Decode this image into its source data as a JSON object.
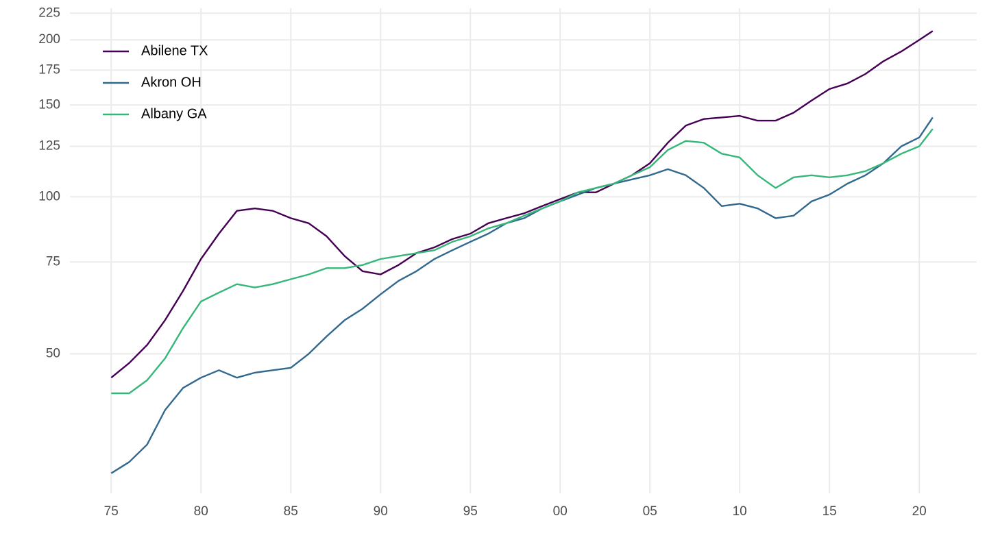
{
  "chart_data": {
    "type": "line",
    "x": [
      1975,
      1976,
      1977,
      1978,
      1979,
      1980,
      1981,
      1982,
      1983,
      1984,
      1985,
      1986,
      1987,
      1988,
      1989,
      1990,
      1991,
      1992,
      1993,
      1994,
      1995,
      1996,
      1997,
      1998,
      1999,
      2000,
      2001,
      2002,
      2003,
      2004,
      2005,
      2006,
      2007,
      2008,
      2009,
      2010,
      2011,
      2012,
      2013,
      2014,
      2015,
      2016,
      2017,
      2018,
      2019,
      2020,
      2020.75
    ],
    "series": [
      {
        "name": "Abilene TX",
        "color": "#440154",
        "values": [
          45,
          48,
          52,
          58,
          66,
          76,
          85,
          94,
          95,
          94,
          91,
          89,
          84,
          77,
          72,
          71,
          74,
          78,
          80,
          83,
          85,
          89,
          91,
          93,
          96,
          99,
          102,
          102,
          106,
          110,
          116,
          127,
          137,
          141,
          142,
          143,
          140,
          140,
          145,
          153,
          161,
          165,
          172,
          182,
          190,
          200,
          208
        ]
      },
      {
        "name": "Akron OH",
        "color": "#31688e",
        "values": [
          29.5,
          31,
          33.5,
          39,
          43,
          45,
          46.5,
          45,
          46,
          46.5,
          47,
          50,
          54,
          58,
          61,
          65,
          69,
          72,
          76,
          79,
          82,
          85,
          89,
          91,
          95,
          98,
          101,
          104,
          106,
          108,
          110,
          113,
          110,
          104,
          96,
          97,
          95,
          91,
          92,
          98,
          101,
          106,
          110,
          116,
          125,
          130,
          142
        ]
      },
      {
        "name": "Albany GA",
        "color": "#35b779",
        "values": [
          42,
          42,
          44.5,
          49,
          56,
          63,
          65.5,
          68,
          67,
          68,
          69.5,
          71,
          73,
          73,
          74,
          76,
          77,
          78,
          79,
          82,
          84,
          87,
          89,
          92,
          95,
          98,
          102,
          104,
          106,
          110,
          114,
          123,
          128,
          127,
          121,
          119,
          110,
          104,
          109,
          110,
          109,
          110,
          112,
          116,
          121,
          125,
          135
        ]
      }
    ],
    "xlim": [
      1972.7,
      2023.2
    ],
    "xticks": [
      {
        "value": 1975,
        "label": "75"
      },
      {
        "value": 1980,
        "label": "80"
      },
      {
        "value": 1985,
        "label": "85"
      },
      {
        "value": 1990,
        "label": "90"
      },
      {
        "value": 1995,
        "label": "95"
      },
      {
        "value": 2000,
        "label": "00"
      },
      {
        "value": 2005,
        "label": "05"
      },
      {
        "value": 2010,
        "label": "10"
      },
      {
        "value": 2015,
        "label": "15"
      },
      {
        "value": 2020,
        "label": "20"
      }
    ],
    "ylim": [
      27,
      230
    ],
    "yticks": [
      50,
      75,
      100,
      125,
      150,
      175,
      200,
      225
    ],
    "log_y": true,
    "grid": true,
    "legend": "top-left"
  }
}
